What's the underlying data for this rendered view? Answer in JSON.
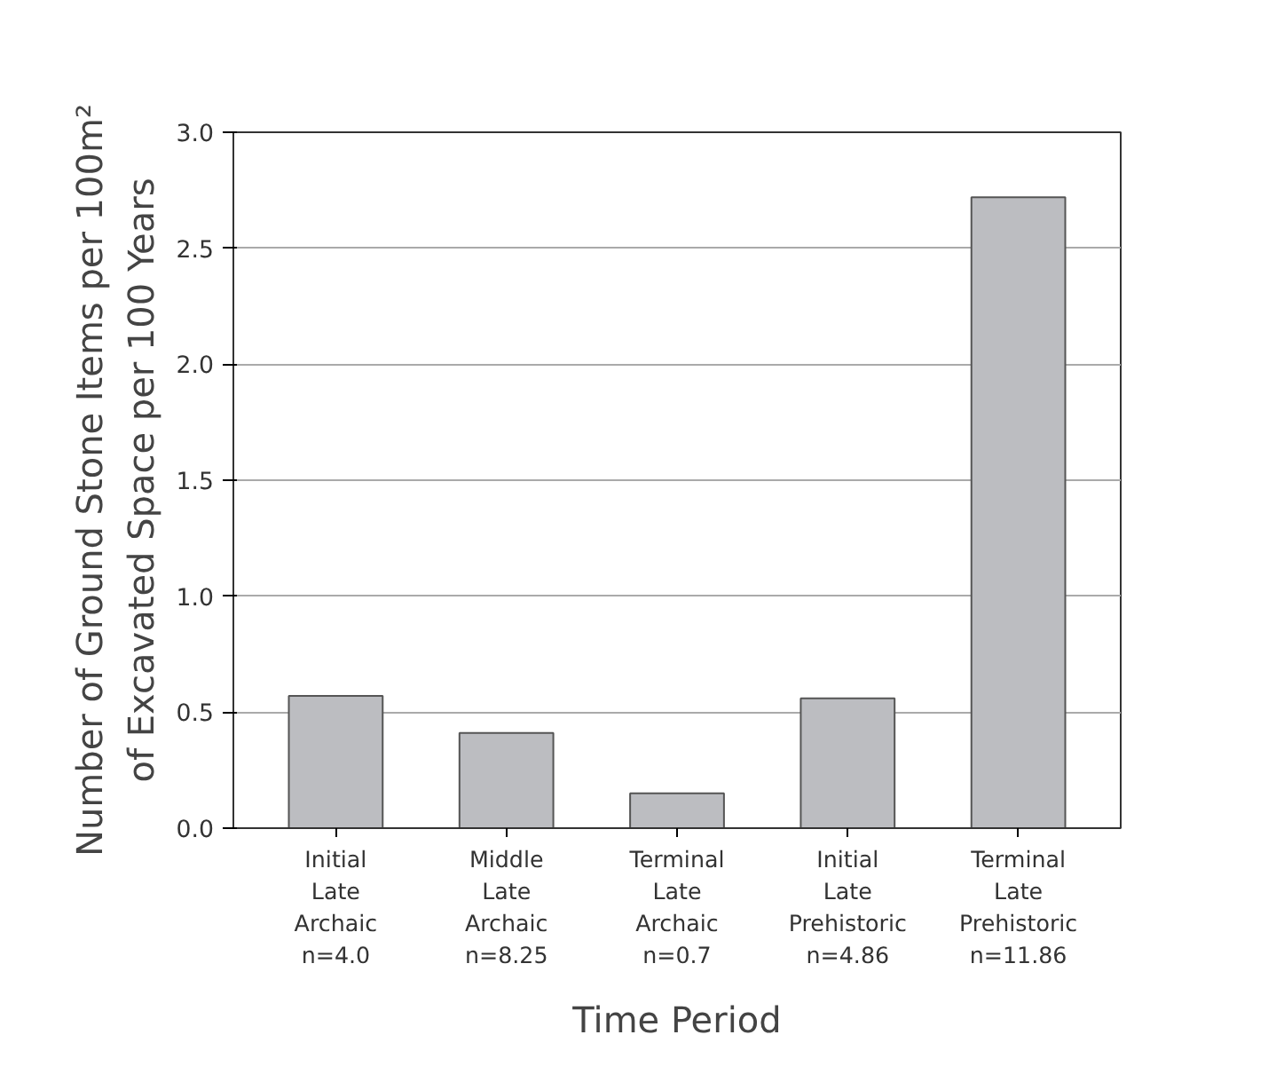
{
  "chart_data": {
    "type": "bar",
    "xlabel": "Time Period",
    "ylabel": "Number of Ground Stone Items per 100m²\nof Excavated Space per 100 Years",
    "categories": [
      "Initial\nLate\nArchaic",
      "Middle\nLate\nArchaic",
      "Terminal\nLate\nArchaic",
      "Initial\nLate\nPrehistoric",
      "Terminal\nLate\nPrehistoric"
    ],
    "values": [
      0.57,
      0.41,
      0.15,
      0.56,
      2.72
    ],
    "color": "#bcbdc1",
    "annotations": [
      "n=4.0",
      "n=8.25",
      "n=0.7",
      "n=4.86",
      "n=11.86"
    ],
    "ylim": [
      0,
      3
    ],
    "yticks": [
      {
        "value": 0,
        "label": "0.0"
      },
      {
        "value": 0.5,
        "label": "0.5"
      },
      {
        "value": 1,
        "label": "1.0"
      },
      {
        "value": 1.5,
        "label": "1.5"
      },
      {
        "value": 2,
        "label": "2.0"
      },
      {
        "value": 2.5,
        "label": "2.5"
      },
      {
        "value": 3,
        "label": "3.0"
      }
    ],
    "grid": "y"
  }
}
